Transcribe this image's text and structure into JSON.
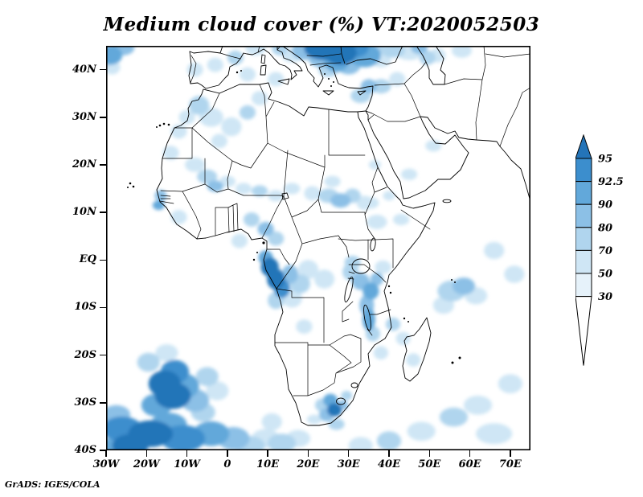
{
  "title": "Medium cloud cover (%) VT:2020052503",
  "credit": "GrADS: IGES/COLA",
  "colorbar": {
    "labels": [
      "95",
      "92.5",
      "90",
      "80",
      "70",
      "50",
      "30"
    ],
    "colors": [
      "#2474b8",
      "#3c8ecd",
      "#62a8da",
      "#8cc0e6",
      "#b0d5ee",
      "#cfe6f5",
      "#e6f2fa",
      "#ffffff"
    ]
  },
  "chart_data": {
    "type": "heatmap",
    "title": "Medium cloud cover (%) VT:2020052503",
    "variable": "Medium cloud cover",
    "units": "%",
    "valid_time": "2020052503",
    "x": {
      "ticks": [
        "30W",
        "20W",
        "10W",
        "0",
        "10E",
        "20E",
        "30E",
        "40E",
        "50E",
        "60E",
        "70E"
      ],
      "values": [
        -30,
        -20,
        -10,
        0,
        10,
        20,
        30,
        40,
        50,
        60,
        70
      ],
      "range": [
        -30,
        75
      ]
    },
    "y": {
      "ticks": [
        "40N",
        "30N",
        "20N",
        "10N",
        "EQ",
        "10S",
        "20S",
        "30S",
        "40S"
      ],
      "values": [
        40,
        30,
        20,
        10,
        0,
        -10,
        -20,
        -30,
        -40
      ],
      "range": [
        -40,
        45
      ]
    },
    "levels": [
      30,
      50,
      70,
      80,
      90,
      92.5,
      95
    ],
    "shade_colors": {
      "30": "#e6f2fa",
      "50": "#cfe6f5",
      "70": "#b0d5ee",
      "80": "#8cc0e6",
      "90": "#62a8da",
      "92.5": "#3c8ecd",
      "95": "#2474b8"
    },
    "cloud_cells": [
      [
        -29,
        43,
        3,
        2,
        "90"
      ],
      [
        -26,
        44.5,
        3,
        1.5,
        "80"
      ],
      [
        -28.5,
        40.5,
        2,
        1.5,
        "50"
      ],
      [
        -8,
        40,
        2,
        1.5,
        "50"
      ],
      [
        -3,
        41,
        2,
        1.5,
        "50"
      ],
      [
        2,
        42.5,
        2,
        1.5,
        "70"
      ],
      [
        7,
        44.5,
        2.5,
        1.5,
        "50"
      ],
      [
        5,
        39,
        2,
        1.5,
        "50"
      ],
      [
        12,
        38,
        2,
        1.5,
        "50"
      ],
      [
        13,
        44.5,
        2,
        1.5,
        "70"
      ],
      [
        16,
        43,
        2.5,
        1.5,
        "50"
      ],
      [
        19,
        44,
        3,
        2,
        "80"
      ],
      [
        23,
        42.5,
        3,
        2,
        "80"
      ],
      [
        24,
        44.5,
        5,
        2.5,
        "95"
      ],
      [
        28,
        43.5,
        4,
        2.5,
        "95"
      ],
      [
        31,
        44.5,
        4,
        2,
        "92.5"
      ],
      [
        34,
        43,
        4,
        2.5,
        "90"
      ],
      [
        27,
        41.5,
        3,
        2,
        "90"
      ],
      [
        25,
        40,
        2.5,
        1.5,
        "70"
      ],
      [
        30,
        41,
        3,
        2,
        "80"
      ],
      [
        36,
        44.5,
        3,
        1.5,
        "70"
      ],
      [
        38,
        42,
        2.5,
        1.5,
        "50"
      ],
      [
        41,
        44,
        3,
        1.5,
        "70"
      ],
      [
        45,
        43.5,
        3,
        1.5,
        "50"
      ],
      [
        49.5,
        42.5,
        2,
        1.5,
        "70"
      ],
      [
        47.5,
        44.5,
        2,
        1.2,
        "80"
      ],
      [
        52,
        43,
        2,
        1.5,
        "50"
      ],
      [
        58,
        44,
        2.5,
        1.5,
        "50"
      ],
      [
        33,
        34.5,
        2.5,
        1.5,
        "70"
      ],
      [
        35,
        36.5,
        2,
        1.5,
        "80"
      ],
      [
        38,
        36.5,
        2.5,
        1.5,
        "70"
      ],
      [
        42,
        38,
        2,
        1.5,
        "50"
      ],
      [
        -7,
        32.5,
        2.5,
        2,
        "70"
      ],
      [
        -10,
        30,
        2,
        1.5,
        "50"
      ],
      [
        -4,
        30,
        3,
        2,
        "50"
      ],
      [
        -12,
        27,
        2,
        1.5,
        "50"
      ],
      [
        1,
        28,
        2.5,
        2,
        "50"
      ],
      [
        -2,
        25,
        2,
        1.5,
        "50"
      ],
      [
        -14,
        22.5,
        2,
        1.5,
        "50"
      ],
      [
        5,
        31,
        2,
        1.5,
        "70"
      ],
      [
        8,
        34,
        2,
        1.5,
        "50"
      ],
      [
        -8,
        20,
        2.5,
        1.5,
        "50"
      ],
      [
        -5,
        17.5,
        2.5,
        1.5,
        "70"
      ],
      [
        -3,
        15.5,
        2,
        1.2,
        "80"
      ],
      [
        0,
        16.5,
        2,
        1.2,
        "50"
      ],
      [
        4,
        15,
        2,
        1.2,
        "50"
      ],
      [
        8,
        14.5,
        2,
        1.2,
        "70"
      ],
      [
        12,
        13.5,
        2,
        1.2,
        "50"
      ],
      [
        16,
        15,
        2,
        1.2,
        "50"
      ],
      [
        21,
        14,
        2,
        1.5,
        "50"
      ],
      [
        25,
        13.5,
        2.5,
        1.5,
        "70"
      ],
      [
        28,
        12.5,
        2.5,
        1.5,
        "80"
      ],
      [
        31,
        13.5,
        2,
        1.5,
        "70"
      ],
      [
        26,
        16.5,
        2,
        1.2,
        "50"
      ],
      [
        34,
        12,
        2,
        1.5,
        "50"
      ],
      [
        -16.5,
        13.5,
        1.5,
        1.2,
        "80"
      ],
      [
        -17,
        11.5,
        1.5,
        1,
        "90"
      ],
      [
        -12,
        9,
        2,
        1.5,
        "50"
      ],
      [
        6,
        8.5,
        2,
        1.5,
        "70"
      ],
      [
        9.5,
        6.5,
        2,
        1.5,
        "80"
      ],
      [
        12,
        4.5,
        2,
        1.5,
        "70"
      ],
      [
        3,
        4,
        2,
        1.5,
        "50"
      ],
      [
        37,
        8,
        2.5,
        1.5,
        "50"
      ],
      [
        35.5,
        12,
        2,
        1.2,
        "50"
      ],
      [
        43,
        8.5,
        2,
        1.2,
        "50"
      ],
      [
        40,
        13.5,
        1.5,
        1,
        "50"
      ],
      [
        9.5,
        0.5,
        1.8,
        1.5,
        "90"
      ],
      [
        10.5,
        -1.5,
        2.2,
        2,
        "95"
      ],
      [
        12,
        -4,
        2.2,
        2.2,
        "95"
      ],
      [
        13.5,
        -6,
        2,
        2,
        "92.5"
      ],
      [
        15.5,
        -3,
        2,
        2,
        "80"
      ],
      [
        18,
        -5,
        2.5,
        2,
        "70"
      ],
      [
        12,
        -8.5,
        2,
        1.8,
        "70"
      ],
      [
        16,
        -8,
        2.5,
        2,
        "50"
      ],
      [
        20,
        -2,
        2.5,
        2,
        "50"
      ],
      [
        24,
        -4,
        2.5,
        2,
        "50"
      ],
      [
        30.5,
        -2.5,
        2,
        1.8,
        "70"
      ],
      [
        33,
        -4.5,
        2.2,
        1.8,
        "80"
      ],
      [
        35.5,
        -6.5,
        2,
        1.8,
        "90"
      ],
      [
        37,
        -4,
        1.6,
        1.4,
        "80"
      ],
      [
        34.5,
        -9.5,
        1.8,
        2.2,
        "80"
      ],
      [
        35,
        -12.5,
        1.6,
        2.4,
        "90"
      ],
      [
        31,
        -0.5,
        2,
        1.4,
        "70"
      ],
      [
        38.5,
        -1.5,
        2,
        1.4,
        "50"
      ],
      [
        36,
        -15.5,
        1.8,
        1.6,
        "70"
      ],
      [
        55.5,
        -6.5,
        3.5,
        2.2,
        "70"
      ],
      [
        58.5,
        -5.5,
        2.8,
        1.8,
        "80"
      ],
      [
        61.5,
        -7.5,
        2.8,
        1.8,
        "50"
      ],
      [
        53.5,
        -9.5,
        2.6,
        1.8,
        "50"
      ],
      [
        66,
        2,
        2.5,
        1.8,
        "50"
      ],
      [
        71,
        -3,
        2.5,
        1.8,
        "50"
      ],
      [
        41,
        -13.5,
        1.8,
        1.4,
        "70"
      ],
      [
        43.5,
        -16.5,
        1.8,
        1.4,
        "50"
      ],
      [
        38,
        -19.5,
        1.8,
        1.4,
        "50"
      ],
      [
        46,
        -21,
        1.8,
        1.4,
        "50"
      ],
      [
        19,
        -14,
        2,
        1.5,
        "50"
      ],
      [
        -13,
        -23.5,
        3.5,
        2.5,
        "92.5"
      ],
      [
        -15.5,
        -26,
        4,
        2.8,
        "95"
      ],
      [
        -10.5,
        -26.5,
        3.5,
        2.6,
        "90"
      ],
      [
        -13.5,
        -28.5,
        4.5,
        2.8,
        "95"
      ],
      [
        -8,
        -29.5,
        3.5,
        2.4,
        "80"
      ],
      [
        -17.5,
        -30.5,
        3.8,
        2.4,
        "90"
      ],
      [
        -5,
        -24.5,
        2.8,
        2,
        "70"
      ],
      [
        -2.5,
        -27.5,
        2.8,
        2,
        "50"
      ],
      [
        -19.5,
        -21.5,
        2.8,
        2,
        "70"
      ],
      [
        -15,
        -19.5,
        2.8,
        1.8,
        "50"
      ],
      [
        -6,
        -32,
        3,
        2,
        "70"
      ],
      [
        -26,
        -35.5,
        5,
        2.6,
        "92.5"
      ],
      [
        -19,
        -36.5,
        5.5,
        2.8,
        "95"
      ],
      [
        -11,
        -37.5,
        5.5,
        2.8,
        "92.5"
      ],
      [
        -4,
        -36.5,
        4.5,
        2.6,
        "90"
      ],
      [
        -27.5,
        -32.5,
        3.5,
        2,
        "80"
      ],
      [
        -24,
        -39,
        4.5,
        2.4,
        "95"
      ],
      [
        -14.5,
        -34.5,
        4.5,
        2.4,
        "90"
      ],
      [
        1.5,
        -37.5,
        4,
        2.4,
        "80"
      ],
      [
        5.5,
        -39,
        3.8,
        2,
        "70"
      ],
      [
        -28.5,
        -39.5,
        4.5,
        2,
        "90"
      ],
      [
        9.5,
        -37.5,
        3.5,
        2,
        "50"
      ],
      [
        13.5,
        -38.5,
        3.5,
        2,
        "70"
      ],
      [
        17.5,
        -37.5,
        3,
        1.8,
        "50"
      ],
      [
        11,
        -34,
        2.5,
        1.8,
        "50"
      ],
      [
        23.5,
        -30.5,
        1.8,
        1.4,
        "70"
      ],
      [
        25.5,
        -29.5,
        1.8,
        1.4,
        "90"
      ],
      [
        26.5,
        -31.5,
        1.8,
        1.4,
        "95"
      ],
      [
        24.5,
        -32.5,
        1.8,
        1.4,
        "80"
      ],
      [
        28.5,
        -30.5,
        1.4,
        1,
        "80"
      ],
      [
        21.5,
        -33.5,
        1.8,
        1,
        "50"
      ],
      [
        29.5,
        -28.5,
        1.4,
        1,
        "70"
      ],
      [
        27,
        -34.5,
        2,
        1.2,
        "70"
      ],
      [
        56,
        -33,
        3.5,
        2,
        "70"
      ],
      [
        62,
        -30.5,
        3.5,
        2,
        "50"
      ],
      [
        66,
        -36.5,
        4.5,
        2.2,
        "50"
      ],
      [
        70,
        -26,
        3,
        2,
        "50"
      ],
      [
        48,
        -36,
        3.5,
        2,
        "50"
      ],
      [
        40,
        -38,
        3,
        2,
        "70"
      ],
      [
        33,
        -39,
        3,
        1.8,
        "50"
      ],
      [
        36.5,
        20,
        1.5,
        1,
        "50"
      ],
      [
        45,
        18,
        2,
        1.2,
        "50"
      ],
      [
        51,
        24,
        2,
        1.2,
        "50"
      ]
    ]
  }
}
